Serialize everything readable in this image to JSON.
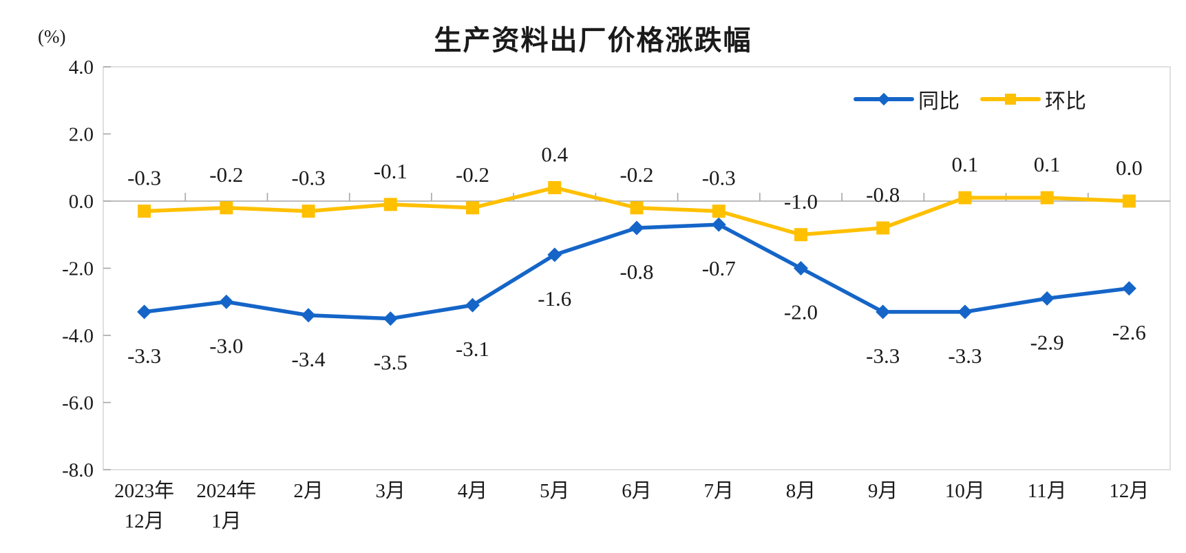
{
  "chart_data": {
    "type": "line",
    "title": "生产资料出厂价格涨跌幅",
    "unit": "(%)",
    "categories": [
      "2023年12月",
      "2024年1月",
      "2月",
      "3月",
      "4月",
      "5月",
      "6月",
      "7月",
      "8月",
      "9月",
      "10月",
      "11月",
      "12月"
    ],
    "category_display": [
      [
        "2023年",
        "12月"
      ],
      [
        "2024年",
        "1月"
      ],
      [
        "2月"
      ],
      [
        "3月"
      ],
      [
        "4月"
      ],
      [
        "5月"
      ],
      [
        "6月"
      ],
      [
        "7月"
      ],
      [
        "8月"
      ],
      [
        "9月"
      ],
      [
        "10月"
      ],
      [
        "11月"
      ],
      [
        "12月"
      ]
    ],
    "series": [
      {
        "name": "同比",
        "color": "#1565c8",
        "marker": "diamond",
        "label_position": "below",
        "values": [
          -3.3,
          -3.0,
          -3.4,
          -3.5,
          -3.1,
          -1.6,
          -0.8,
          -0.7,
          -2.0,
          -3.3,
          -3.3,
          -2.9,
          -2.6
        ],
        "labels": [
          "-3.3",
          "-3.0",
          "-3.4",
          "-3.5",
          "-3.1",
          "-1.6",
          "-0.8",
          "-0.7",
          "-2.0",
          "-3.3",
          "-3.3",
          "-2.9",
          "-2.6"
        ]
      },
      {
        "name": "环比",
        "color": "#ffc000",
        "marker": "square",
        "label_position": "above",
        "values": [
          -0.3,
          -0.2,
          -0.3,
          -0.1,
          -0.2,
          0.4,
          -0.2,
          -0.3,
          -1.0,
          -0.8,
          0.1,
          0.1,
          0.0
        ],
        "labels": [
          "-0.3",
          "-0.2",
          "-0.3",
          "-0.1",
          "-0.2",
          "0.4",
          "-0.2",
          "-0.3",
          "-1.0",
          "-0.8",
          "0.1",
          "0.1",
          "0.0"
        ]
      }
    ],
    "y_axis": {
      "min": -8.0,
      "max": 4.0,
      "step": 2.0,
      "tick_labels": [
        "4.0",
        "2.0",
        "0.0",
        "-2.0",
        "-4.0",
        "-6.0",
        "-8.0"
      ]
    },
    "grid": false,
    "legend_position": "top-right",
    "axis_crosses_at": 0
  },
  "colors": {
    "plot_border": "#d9d9d9",
    "zero_axis": "#a6a6a6",
    "tick": "#a6a6a6",
    "text": "#1a1a1a"
  }
}
